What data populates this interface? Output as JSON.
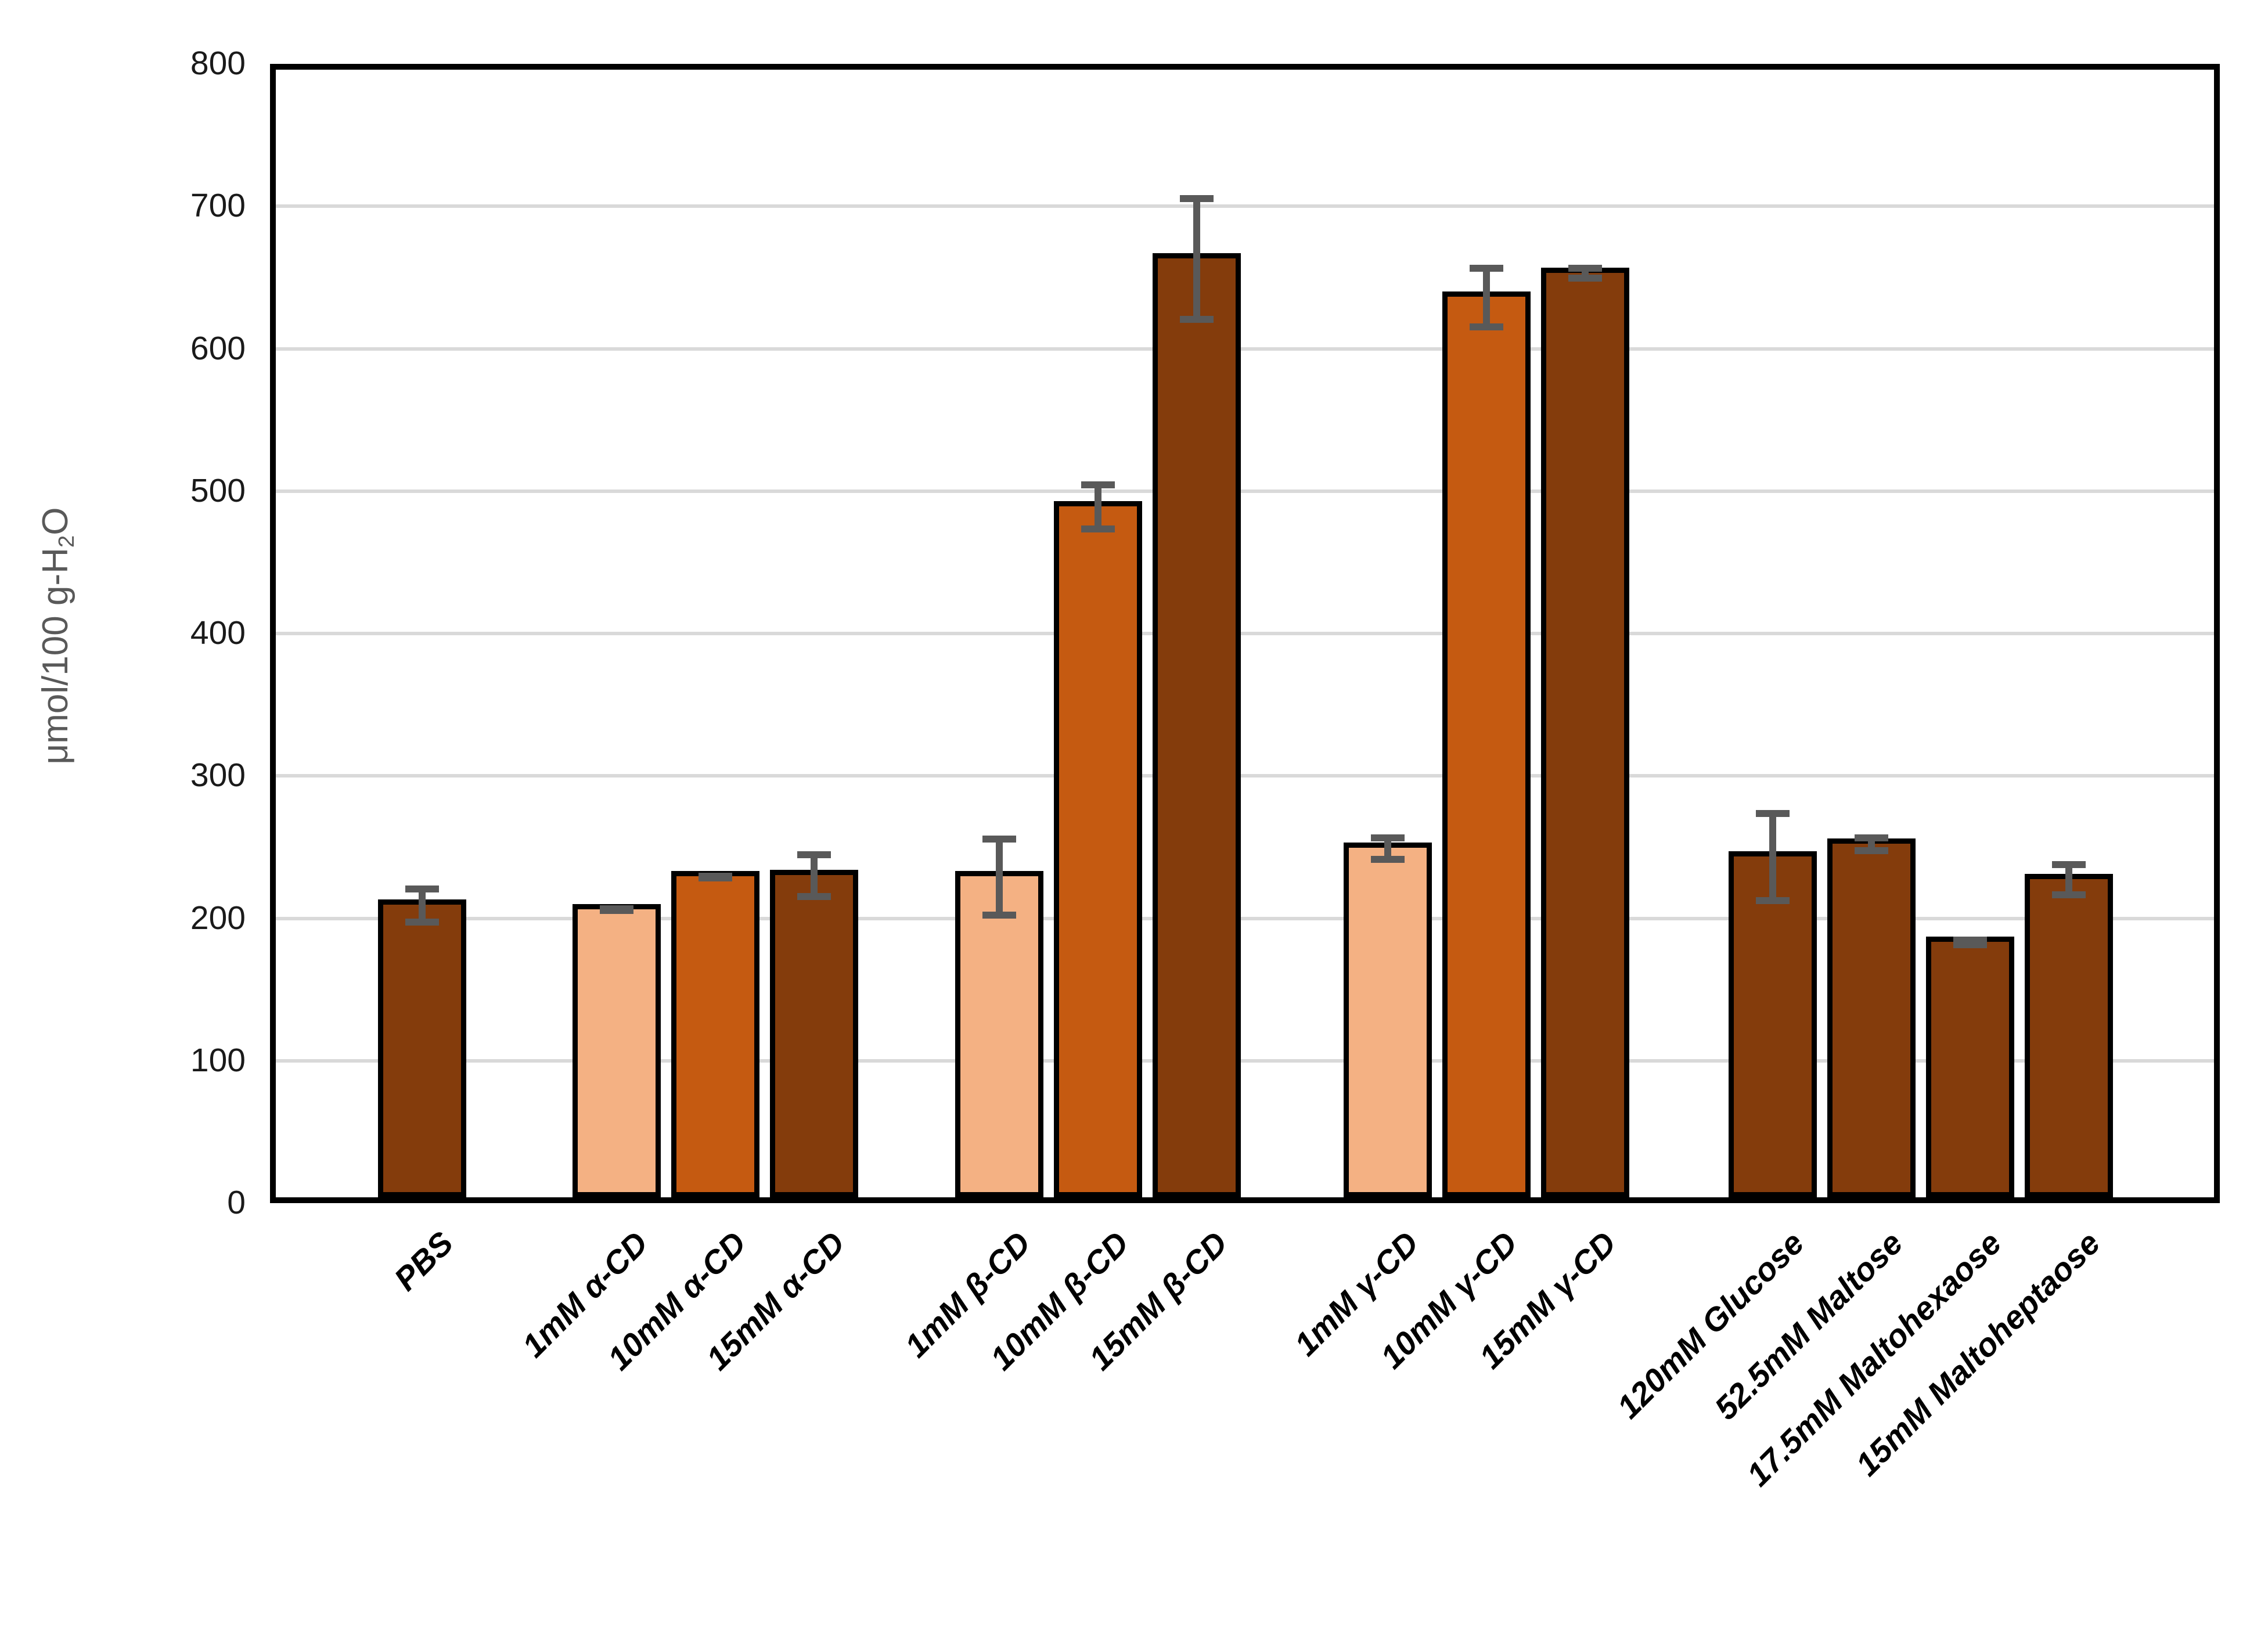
{
  "chart_data": {
    "type": "bar",
    "title": "",
    "xlabel": "",
    "ylabel": "μmol/100 g-H2O",
    "ylabel_parts": {
      "main": "μmol/100 g-H",
      "sub": "2",
      "end": "O"
    },
    "y_axis": {
      "min": 0,
      "max": 800,
      "step": 100,
      "tick_labels": [
        "0",
        "100",
        "200",
        "300",
        "400",
        "500",
        "600",
        "700",
        "800"
      ]
    },
    "grid": true,
    "legend_position": "none",
    "categories": [
      "PBS",
      "1mM α-CD",
      "10mM α-CD",
      "15mM α-CD",
      "1mM β-CD",
      "10mM β-CD",
      "15mM β-CD",
      "1mM γ-CD",
      "10mM γ-CD",
      "15mM γ-CD",
      "120mM Glucose",
      "52.5mM Maltose",
      "17.5mM Maltohexaose",
      "15mM Maltoheptaose"
    ],
    "values": [
      209,
      206,
      229,
      230,
      229,
      489,
      663,
      249,
      636,
      653,
      243,
      252,
      183,
      227
    ],
    "error_bars": [
      14,
      3,
      3,
      17,
      29,
      18,
      45,
      10,
      23,
      6,
      33,
      7,
      4,
      13
    ],
    "bar_shades": [
      "dark",
      "light",
      "medium",
      "dark",
      "light",
      "medium",
      "dark",
      "light",
      "medium",
      "dark",
      "dark",
      "dark",
      "dark",
      "dark"
    ],
    "group_sizes": [
      1,
      3,
      3,
      3,
      4
    ],
    "colors": {
      "light": "#F4B183",
      "medium": "#C55A11",
      "dark": "#843C0C",
      "bar_border": "#000000",
      "error_bar": "#595959",
      "gridline": "#D9D9D9",
      "frame": "#000000",
      "tick_text": "#1a1a1a",
      "x_label_text": "#000000",
      "y_title_text": "#595959",
      "background": "#ffffff"
    }
  }
}
